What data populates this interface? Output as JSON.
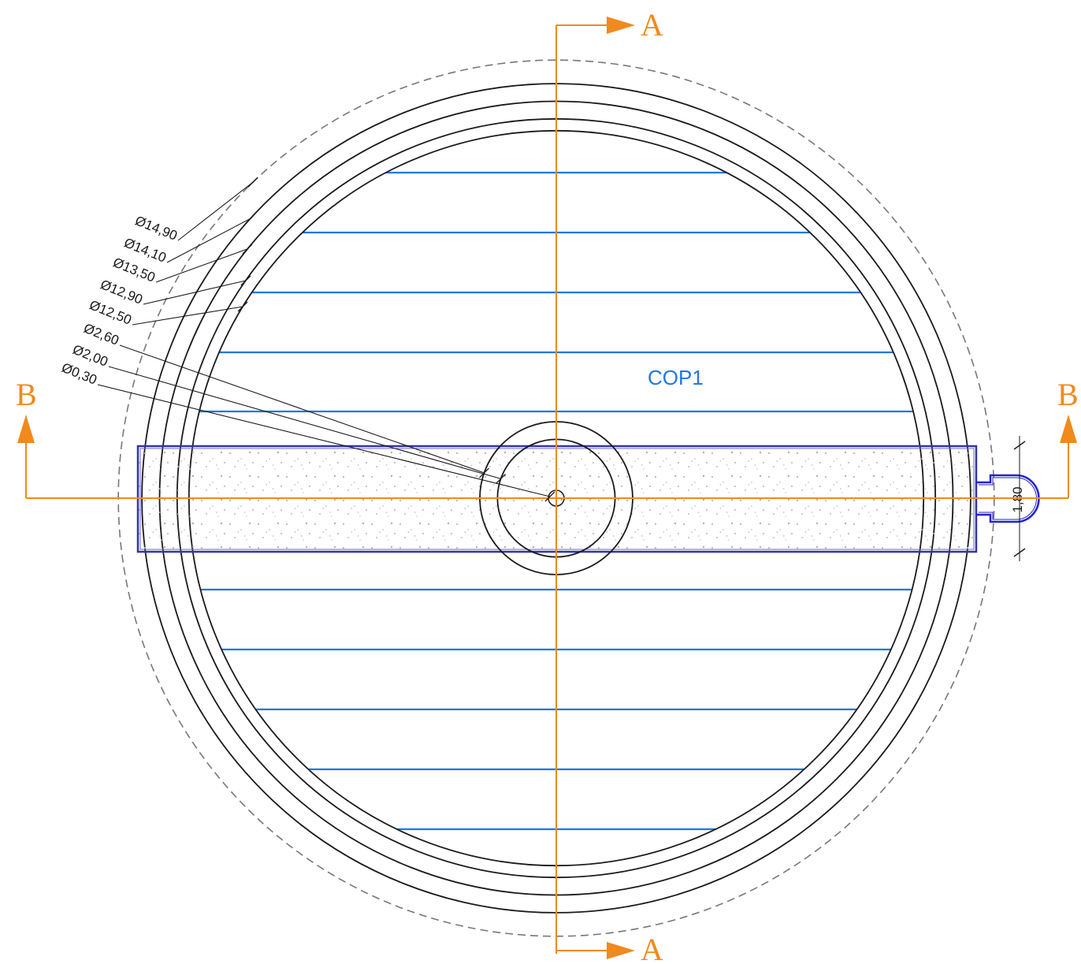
{
  "colors": {
    "section": "#f08a1c",
    "hatch": "#1e78e0",
    "label": "#1e78e0",
    "slab": "#3333aa",
    "outline": "#1a1a1a",
    "dashed": "#777777"
  },
  "zone_label": "COP1",
  "section_marks": {
    "a_top": "A",
    "a_bottom": "A",
    "b_left": "B",
    "b_right": "B"
  },
  "diameters": [
    {
      "label": "Ø14,90",
      "value": 14.9,
      "style": "dashed"
    },
    {
      "label": "Ø14,10",
      "value": 14.1,
      "style": "solid"
    },
    {
      "label": "Ø13,50",
      "value": 13.5,
      "style": "solid"
    },
    {
      "label": "Ø12,90",
      "value": 12.9,
      "style": "solid"
    },
    {
      "label": "Ø12,50",
      "value": 12.5,
      "style": "solid"
    },
    {
      "label": "Ø2,60",
      "value": 2.6,
      "style": "solid"
    },
    {
      "label": "Ø2,00",
      "value": 2.0,
      "style": "solid"
    },
    {
      "label": "Ø0,30",
      "value": 0.3,
      "style": "solid"
    }
  ],
  "outlet_width_label": "1,80"
}
